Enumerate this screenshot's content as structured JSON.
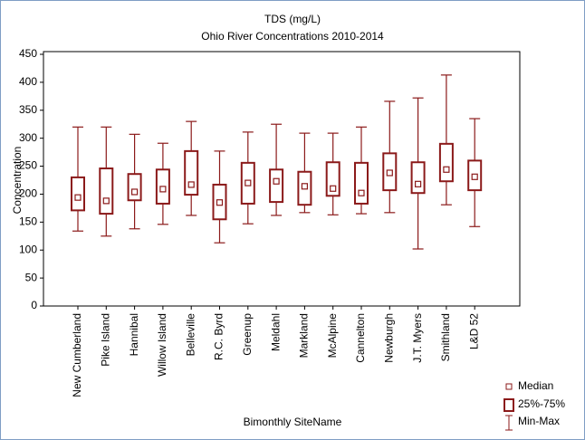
{
  "chart_data": {
    "type": "box",
    "title": "TDS (mg/L)",
    "subtitle": "Ohio River Concentrations 2010-2014",
    "x_label": "Bimonthly SiteName",
    "y_label": "Concentration",
    "color": "#8b1a1a",
    "categories": [
      "New Cumberland",
      "Pike Island",
      "Hannibal",
      "Willow Island",
      "Belleville",
      "R.C. Byrd",
      "Greenup",
      "Meldahl",
      "Markland",
      "McAlpine",
      "Cannelton",
      "Newburgh",
      "J.T. Myers",
      "Smithland",
      "L&D 52"
    ],
    "min": [
      134,
      125,
      138,
      146,
      162,
      113,
      147,
      162,
      167,
      163,
      165,
      167,
      102,
      181,
      142
    ],
    "q1": [
      171,
      165,
      189,
      183,
      199,
      155,
      183,
      186,
      181,
      197,
      183,
      207,
      202,
      223,
      207
    ],
    "median": [
      194,
      188,
      204,
      209,
      217,
      185,
      220,
      223,
      214,
      210,
      202,
      238,
      218,
      244,
      231
    ],
    "q3": [
      230,
      246,
      236,
      244,
      277,
      217,
      256,
      244,
      240,
      257,
      256,
      273,
      257,
      290,
      260
    ],
    "max": [
      320,
      320,
      307,
      291,
      330,
      277,
      311,
      325,
      309,
      309,
      320,
      366,
      372,
      413,
      335
    ],
    "legend": {
      "median": "Median",
      "box": "25%-75%",
      "whisker": "Min-Max"
    },
    "ylim": [
      0,
      450
    ],
    "yticks": [
      0,
      50,
      100,
      150,
      200,
      250,
      300,
      350,
      400,
      450
    ]
  }
}
